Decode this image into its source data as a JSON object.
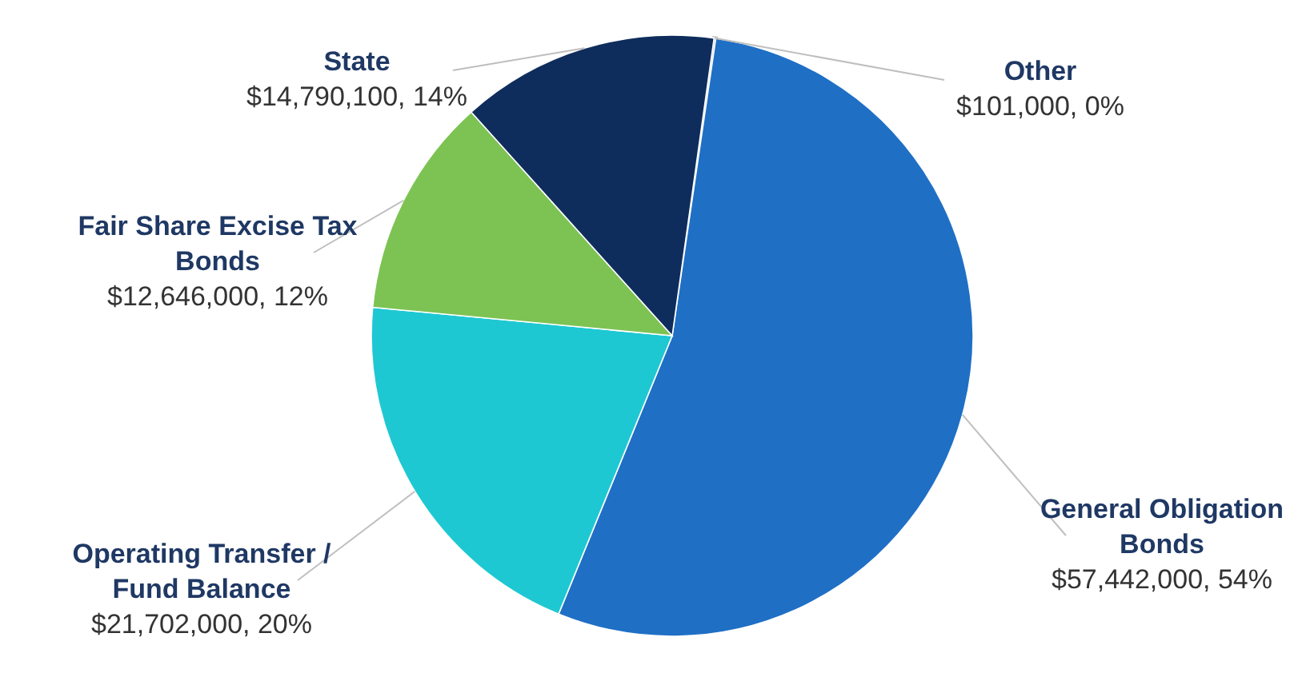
{
  "chart_data": {
    "type": "pie",
    "categories": [
      "Other",
      "General Obligation Bonds",
      "Operating Transfer / Fund Balance",
      "Fair Share Excise Tax Bonds",
      "State"
    ],
    "values": [
      101000,
      57442000,
      21702000,
      12646000,
      14790100
    ],
    "colors": [
      "#c8c8c8",
      "#1f6fc5",
      "#1ec8d2",
      "#7dc353",
      "#0f2d5c"
    ],
    "value_labels": [
      "$101,000, 0%",
      "$57,442,000, 54%",
      "$21,702,000, 20%",
      "$12,646,000, 12%",
      "$14,790,100, 14%"
    ],
    "legend": false
  }
}
